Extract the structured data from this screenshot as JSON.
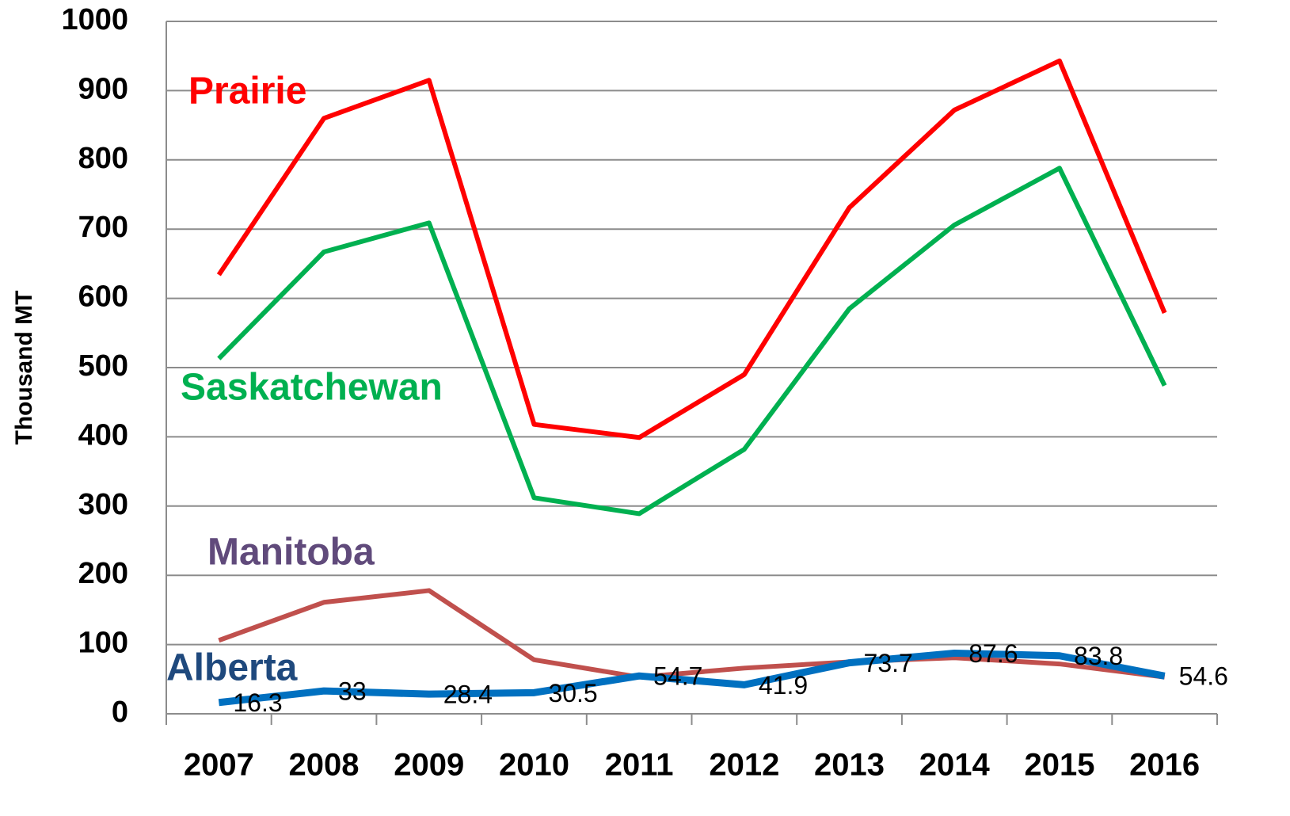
{
  "chart_data": {
    "type": "line",
    "y_label": "Thousand MT",
    "categories": [
      "2007",
      "2008",
      "2009",
      "2010",
      "2011",
      "2012",
      "2013",
      "2014",
      "2015",
      "2016"
    ],
    "series": [
      {
        "name": "Prairie",
        "color": "#ff0000",
        "label_color": "#ff0000",
        "values": [
          634,
          860,
          915,
          418,
          399,
          490,
          731,
          872,
          943,
          579
        ]
      },
      {
        "name": "Saskatchewan",
        "color": "#00b050",
        "label_color": "#00b050",
        "values": [
          513,
          667,
          709,
          312,
          289,
          382,
          585,
          706,
          788,
          474
        ]
      },
      {
        "name": "Manitoba",
        "color": "#c0504d",
        "label_color": "#604a7b",
        "values": [
          106,
          161,
          178,
          78,
          53,
          66,
          75,
          81,
          72,
          53
        ]
      },
      {
        "name": "Alberta",
        "color": "#0070c0",
        "label_color": "#1f497d",
        "values": [
          16.3,
          33,
          28.4,
          30.5,
          54.7,
          41.9,
          73.7,
          87.6,
          83.8,
          54.6
        ],
        "data_labels": true
      }
    ],
    "ylim": [
      0,
      1000
    ],
    "yticks": [
      0,
      100,
      200,
      300,
      400,
      500,
      600,
      700,
      800,
      900,
      1000
    ],
    "grid": true
  }
}
